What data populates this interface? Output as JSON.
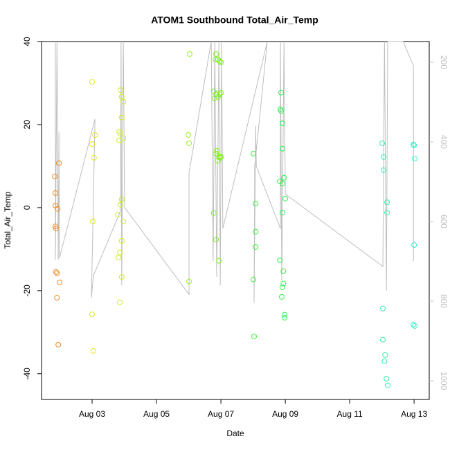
{
  "chart_data": {
    "type": "scatter",
    "title": "ATOM1 Southbound Total_Air_Temp",
    "xlabel": "Date",
    "ylabel": "Total_Air_Temp",
    "xlim": [
      1.43,
      13.47
    ],
    "ylim": [
      -46.2,
      40
    ],
    "y2lim": [
      1047,
      148
    ],
    "xticks": [
      {
        "value": 3,
        "label": "Aug 03"
      },
      {
        "value": 5,
        "label": "Aug 05"
      },
      {
        "value": 7,
        "label": "Aug 07"
      },
      {
        "value": 9,
        "label": "Aug 09"
      },
      {
        "value": 11,
        "label": "Aug 11"
      },
      {
        "value": 13,
        "label": "Aug 13"
      }
    ],
    "yticks": [
      -40,
      -20,
      0,
      20,
      40
    ],
    "y2ticks": [
      200,
      400,
      600,
      800,
      1000
    ],
    "y2color": "#BEBEBE",
    "series": [
      {
        "axis": "y2",
        "color": "#BEBEBE",
        "x": [
          1.86,
          1.86,
          1.91,
          1.95,
          1.97,
          1.99,
          3.09,
          2.98,
          3.04,
          3.88,
          3.9,
          3.92,
          3.97,
          4.01,
          6.01,
          6.01,
          6.7,
          6.76,
          6.81,
          6.87,
          6.94,
          6.98,
          7.02,
          7.06,
          8.44,
          8.05,
          8.03,
          8.08,
          8.1,
          8.85,
          8.85,
          8.89,
          8.96,
          9.0,
          12.03,
          12.08,
          12.14,
          12.18,
          12.66,
          12.98,
          12.98
        ],
        "values": [
          148,
          696,
          148,
          696,
          374,
          691,
          343,
          791,
          736,
          574,
          148,
          760,
          148,
          565,
          783,
          478,
          148,
          699,
          148,
          739,
          148,
          760,
          148,
          618,
          148,
          461,
          804,
          360,
          461,
          618,
          148,
          748,
          148,
          531,
          713,
          148,
          774,
          148,
          148,
          209,
          699
        ]
      },
      {
        "color": "#F28A1E",
        "x": [
          1.84,
          1.86,
          1.86,
          1.86,
          1.88,
          1.88,
          1.91,
          1.93,
          1.91,
          1.97,
          1.99,
          1.95
        ],
        "values": [
          7.5,
          3.5,
          0.5,
          -4.5,
          -5,
          -15.5,
          -15.8,
          -0.3,
          -21.7,
          10.7,
          -18,
          -33
        ]
      },
      {
        "color": "#E3E619",
        "x": [
          3.0,
          3.09,
          3.06,
          3.02,
          3.0,
          3.04,
          3.0
        ],
        "values": [
          30.3,
          17.5,
          12,
          -3.3,
          -25.7,
          -34.5,
          15.3
        ]
      },
      {
        "color": "#C8F020",
        "x": [
          3.88,
          3.92,
          3.97,
          3.92,
          3.84,
          3.88,
          3.97,
          3.84,
          3.92,
          3.88,
          3.97,
          3.86,
          3.82,
          3.92,
          3.86,
          3.92,
          3.8
        ],
        "values": [
          28.3,
          26.7,
          25.5,
          21.7,
          18.3,
          17.8,
          16.7,
          16.2,
          2,
          0.7,
          -3.3,
          -10.8,
          -12,
          -8,
          -22.8,
          -16.7,
          -1.7
        ]
      },
      {
        "color": "#A0F020",
        "x": [
          6.03,
          5.99,
          6.01,
          6.01
        ],
        "values": [
          37,
          17.5,
          15.5,
          -17.8
        ]
      },
      {
        "color": "#7CF01C",
        "x": [
          6.85,
          6.83,
          6.91,
          6.96,
          7.0,
          6.78,
          6.85,
          6.96,
          7.0,
          6.91,
          6.81,
          6.87,
          6.85,
          6.94,
          6.98,
          6.91,
          7.0,
          6.78,
          6.85,
          6.94
        ],
        "values": [
          37,
          35.7,
          35.7,
          35.3,
          35,
          28,
          27.3,
          27.3,
          27.7,
          26.7,
          26.3,
          13.7,
          13,
          12.3,
          12,
          11.3,
          12.3,
          -1.3,
          -7.7,
          -12.8
        ]
      },
      {
        "color": "#3CF03C",
        "x": [
          8.01,
          8.08,
          8.08,
          8.08,
          8.01,
          8.03
        ],
        "values": [
          13,
          1,
          -5.8,
          -9.5,
          -17.3,
          -31
        ]
      },
      {
        "color": "#2EF050",
        "x": [
          8.87,
          8.85,
          8.87,
          8.91,
          8.91,
          8.96,
          8.83,
          8.91,
          9.0,
          8.91,
          8.83,
          8.94,
          8.94,
          8.91,
          8.89,
          8.98,
          8.98
        ],
        "values": [
          27.7,
          23.7,
          23.3,
          20.3,
          14.2,
          7.2,
          6.3,
          5.8,
          2.2,
          -1.2,
          -12.7,
          -15.3,
          -18.3,
          -19.2,
          -21.5,
          -25.8,
          -26.5
        ]
      },
      {
        "color": "#33F0A8",
        "x": [
          12.01,
          12.05,
          12.05,
          12.16,
          12.16,
          12.03,
          12.03,
          12.1,
          12.08,
          12.14,
          12.18
        ],
        "values": [
          15.5,
          12.2,
          9,
          1.3,
          -1.2,
          -24.3,
          -31.8,
          -35.5,
          -37,
          -41.2,
          -42.8
        ]
      },
      {
        "color": "#33F0C8",
        "x": [
          12.98,
          13.0,
          13.02,
          13.0,
          12.98,
          13.02
        ],
        "values": [
          15.2,
          15,
          11.8,
          -9,
          -28.2,
          -28.5
        ]
      }
    ]
  }
}
